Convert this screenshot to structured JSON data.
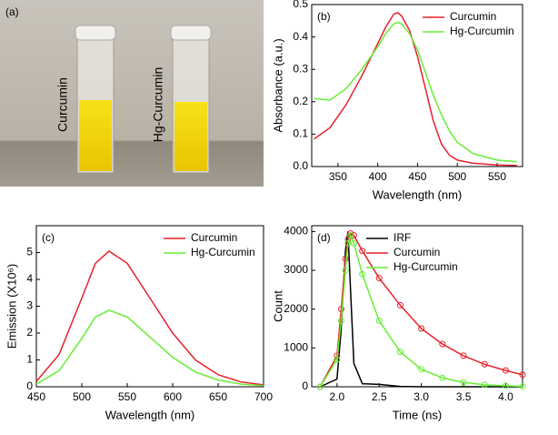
{
  "photo": {
    "label": "(a)",
    "samples": [
      "Curcumin",
      "Hg-Curcumin"
    ]
  },
  "chart_data": [
    {
      "type": "line",
      "label": "(b)",
      "x_label": "Wavelength (nm)",
      "y_label": "Absorbance (a.u.)",
      "x": [
        320,
        340,
        360,
        380,
        400,
        410,
        420,
        425,
        430,
        440,
        450,
        460,
        470,
        480,
        490,
        500,
        520,
        550,
        575
      ],
      "series": [
        {
          "name": "Curcumin",
          "color": "#e8202a",
          "values": [
            0.085,
            0.12,
            0.19,
            0.28,
            0.38,
            0.43,
            0.47,
            0.475,
            0.465,
            0.42,
            0.34,
            0.24,
            0.14,
            0.07,
            0.035,
            0.02,
            0.01,
            0.005,
            0.003
          ]
        },
        {
          "name": "Hg-Curcumin",
          "color": "#66ee33",
          "values": [
            0.21,
            0.205,
            0.24,
            0.3,
            0.37,
            0.41,
            0.44,
            0.445,
            0.44,
            0.41,
            0.36,
            0.29,
            0.22,
            0.16,
            0.11,
            0.075,
            0.04,
            0.02,
            0.015
          ]
        }
      ],
      "xlim": [
        317,
        582
      ],
      "xticks": [
        350,
        400,
        450,
        500,
        550
      ],
      "ylim": [
        0,
        0.5
      ],
      "yticks": [
        {
          "value": 0,
          "label": "0.0"
        },
        0.1,
        0.2,
        0.3,
        0.4,
        0.5
      ],
      "legend": "upper right"
    },
    {
      "type": "line",
      "label": "(c)",
      "x_label": "Wavelength (nm)",
      "y_label": "Emission (X10⁶)",
      "x": [
        450,
        475,
        500,
        515,
        530,
        550,
        575,
        600,
        625,
        650,
        675,
        700
      ],
      "series": [
        {
          "name": "Curcumin",
          "color": "#e8202a",
          "values": [
            0.2,
            1.2,
            3.3,
            4.6,
            5.05,
            4.6,
            3.3,
            2.0,
            1.0,
            0.45,
            0.18,
            0.07
          ]
        },
        {
          "name": "Hg-Curcumin",
          "color": "#66ee33",
          "values": [
            0.1,
            0.6,
            1.8,
            2.6,
            2.85,
            2.6,
            1.85,
            1.1,
            0.55,
            0.25,
            0.1,
            0.04
          ]
        }
      ],
      "xlim": [
        450,
        700
      ],
      "xticks": [
        450,
        500,
        550,
        600,
        650,
        700
      ],
      "ylim": [
        0,
        6
      ],
      "yticks": [
        0,
        1,
        2,
        3,
        4,
        5
      ],
      "legend": "upper right"
    },
    {
      "type": "line",
      "label": "(d)",
      "x_label": "Time (ns)",
      "y_label": "Count",
      "x": [
        1.8,
        2.0,
        2.05,
        2.1,
        2.13,
        2.16,
        2.2,
        2.3,
        2.5,
        2.75,
        3.0,
        3.25,
        3.5,
        3.75,
        4.0,
        4.2
      ],
      "series": [
        {
          "name": "IRF",
          "color": "#000000",
          "values": [
            0,
            200,
            1500,
            3500,
            4000,
            2500,
            600,
            80,
            60,
            10,
            0,
            0,
            0,
            0,
            0,
            0
          ]
        },
        {
          "name": "Curcumin",
          "color": "#e8202a",
          "marker": "circle",
          "values": [
            0,
            800,
            2000,
            3300,
            3800,
            3950,
            3900,
            3500,
            2800,
            2100,
            1500,
            1100,
            800,
            580,
            420,
            310
          ]
        },
        {
          "name": "Hg-Curcumin",
          "color": "#66ee33",
          "marker": "circle",
          "values": [
            0,
            700,
            1700,
            3000,
            3700,
            3900,
            3700,
            2900,
            1700,
            900,
            450,
            230,
            110,
            50,
            25,
            10
          ]
        }
      ],
      "xlim": [
        1.7,
        4.2
      ],
      "xticks": [
        {
          "value": 2,
          "label": "2.0"
        },
        2.5,
        {
          "value": 3,
          "label": "3.0"
        },
        3.5,
        {
          "value": 4,
          "label": "4.0"
        }
      ],
      "ylim": [
        0,
        4150
      ],
      "yticks": [
        0,
        1000,
        2000,
        3000,
        4000
      ],
      "legend": "upper left"
    }
  ]
}
